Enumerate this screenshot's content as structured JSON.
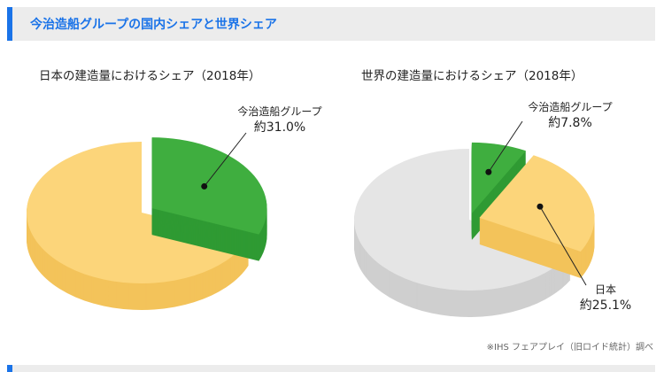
{
  "header": {
    "title": "今治造船グループの国内シェアと世界シェア"
  },
  "colors": {
    "accent": "#1a73e8",
    "green": "#3fae3f",
    "green_side": "#2f9a33",
    "yellow": "#fcd57a",
    "yellow_side": "#f3c35a",
    "gray": "#e5e5e5",
    "gray_side": "#cfcfcf"
  },
  "chart_data": [
    {
      "type": "pie",
      "title": "日本の建造量におけるシェア（2018年）",
      "slices": [
        {
          "name": "今治造船グループ",
          "value": 31.0,
          "label": "約31.0%",
          "color": "#3fae3f",
          "exploded": true
        },
        {
          "name": "",
          "value": 69.0,
          "label": "",
          "color": "#fcd57a",
          "exploded": false
        }
      ]
    },
    {
      "type": "pie",
      "title": "世界の建造量におけるシェア（2018年）",
      "slices": [
        {
          "name": "今治造船グループ",
          "value": 7.8,
          "label": "約7.8%",
          "color": "#3fae3f",
          "exploded": true
        },
        {
          "name": "日本",
          "value": 25.1,
          "label": "約25.1%",
          "color": "#fcd57a",
          "exploded": true
        },
        {
          "name": "",
          "value": 67.1,
          "label": "",
          "color": "#e5e5e5",
          "exploded": false
        }
      ]
    }
  ],
  "source": "※IHS フェアプレイ（旧ロイド統計）調べ"
}
